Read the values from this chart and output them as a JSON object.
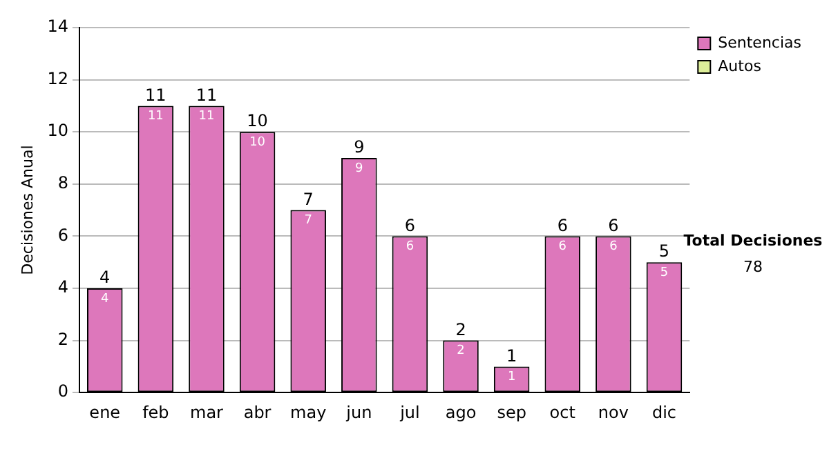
{
  "chart_data": {
    "type": "bar",
    "ylabel": "Decisiones Anual",
    "categories": [
      "ene",
      "feb",
      "mar",
      "abr",
      "may",
      "jun",
      "jul",
      "ago",
      "sep",
      "oct",
      "nov",
      "dic"
    ],
    "series": [
      {
        "name": "Sentencias",
        "color": "#dd77bb",
        "values": [
          4,
          11,
          11,
          10,
          7,
          9,
          6,
          2,
          1,
          6,
          6,
          5
        ],
        "value_labels": [
          "4",
          "11",
          "11",
          "10",
          "7",
          "9",
          "6",
          "2",
          "1",
          "6",
          "6",
          "5"
        ]
      },
      {
        "name": "Autos",
        "color": "#ddee99",
        "values": [
          0,
          0,
          0,
          0,
          0,
          0,
          0,
          0,
          0,
          0,
          0,
          0
        ]
      }
    ],
    "stacked": true,
    "totals": [
      "4",
      "11",
      "11",
      "10",
      "7",
      "9",
      "6",
      "2",
      "1",
      "6",
      "6",
      "5"
    ],
    "ylim": [
      0,
      14
    ],
    "yticks": [
      0,
      2,
      4,
      6,
      8,
      10,
      12,
      14
    ],
    "grid": "y",
    "legend": "right",
    "annotations": [
      "Total Decisiones",
      "78"
    ]
  }
}
